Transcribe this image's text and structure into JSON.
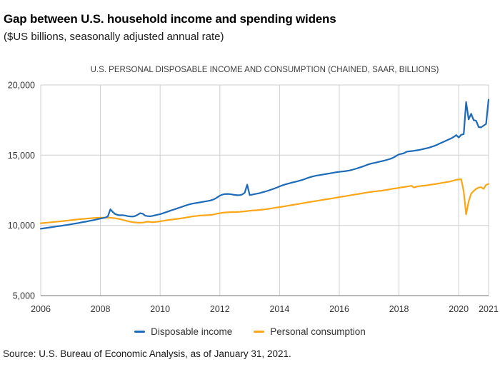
{
  "header": {
    "title": "Gap between U.S. household income and spending widens",
    "subtitle": "($US billions, seasonally adjusted annual rate)"
  },
  "source": {
    "text": "Source: U.S. Bureau of Economic Analysis, as of January 31, 2021."
  },
  "legend": {
    "items": [
      {
        "label": "Disposable income",
        "color": "#1d6bb8"
      },
      {
        "label": "Personal consumption",
        "color": "#fba616"
      }
    ]
  },
  "colors": {
    "grid": "#cfcfcf",
    "axis": "#8f8f8f",
    "tick_text": "#333333",
    "background": "#ffffff"
  },
  "chart_data": {
    "type": "line",
    "title": "U.S. PERSONAL DISPOSABLE INCOME AND CONSUMPTION (CHAINED, SAAR, BILLIONS)",
    "xlabel": "",
    "ylabel": "",
    "xlim": [
      2006,
      2021
    ],
    "ylim": [
      5000,
      20000
    ],
    "grid": true,
    "legend_position": "bottom",
    "x_start_year": 2006,
    "x_step_months": 1,
    "x_ticks": [
      2006,
      2008,
      2010,
      2012,
      2014,
      2016,
      2018,
      2020,
      2021
    ],
    "x_tick_labels": [
      "2006",
      "2008",
      "2010",
      "2012",
      "2014",
      "2016",
      "2018",
      "2020",
      "2021"
    ],
    "y_ticks": [
      5000,
      10000,
      15000,
      20000
    ],
    "y_tick_labels": [
      "5,000",
      "10,000",
      "15,000",
      "20,000"
    ],
    "series": [
      {
        "name": "Disposable income",
        "color": "#1d6bb8",
        "values": [
          9760,
          9785,
          9810,
          9835,
          9860,
          9885,
          9915,
          9940,
          9965,
          9995,
          10020,
          10045,
          10075,
          10105,
          10135,
          10165,
          10200,
          10235,
          10265,
          10300,
          10335,
          10370,
          10405,
          10445,
          10485,
          10520,
          10560,
          10650,
          11150,
          10950,
          10800,
          10740,
          10720,
          10730,
          10700,
          10660,
          10640,
          10630,
          10670,
          10760,
          10870,
          10830,
          10690,
          10660,
          10650,
          10680,
          10720,
          10760,
          10800,
          10860,
          10920,
          10980,
          11040,
          11100,
          11160,
          11220,
          11280,
          11340,
          11400,
          11460,
          11510,
          11550,
          11580,
          11610,
          11640,
          11670,
          11700,
          11730,
          11770,
          11820,
          11890,
          12000,
          12120,
          12190,
          12230,
          12240,
          12230,
          12200,
          12170,
          12150,
          12160,
          12200,
          12320,
          12900,
          12160,
          12190,
          12230,
          12260,
          12300,
          12350,
          12400,
          12450,
          12510,
          12570,
          12630,
          12700,
          12780,
          12840,
          12900,
          12950,
          13000,
          13050,
          13090,
          13130,
          13180,
          13230,
          13290,
          13360,
          13420,
          13470,
          13510,
          13550,
          13580,
          13610,
          13640,
          13670,
          13700,
          13730,
          13760,
          13790,
          13810,
          13830,
          13850,
          13880,
          13910,
          13950,
          14000,
          14050,
          14110,
          14170,
          14230,
          14300,
          14360,
          14410,
          14450,
          14490,
          14530,
          14570,
          14610,
          14660,
          14710,
          14770,
          14850,
          14960,
          15060,
          15100,
          15140,
          15240,
          15270,
          15290,
          15310,
          15340,
          15370,
          15410,
          15450,
          15490,
          15530,
          15590,
          15650,
          15720,
          15800,
          15880,
          15960,
          16040,
          16120,
          16200,
          16300,
          16430,
          16260,
          16450,
          16500,
          18780,
          17550,
          17950,
          17500,
          17450,
          17000,
          16980,
          17100,
          17230,
          18960
        ]
      },
      {
        "name": "Personal consumption",
        "color": "#fba616",
        "values": [
          10150,
          10168,
          10185,
          10203,
          10220,
          10238,
          10255,
          10273,
          10290,
          10310,
          10330,
          10350,
          10370,
          10390,
          10410,
          10430,
          10448,
          10463,
          10478,
          10493,
          10508,
          10520,
          10530,
          10540,
          10548,
          10552,
          10552,
          10548,
          10540,
          10528,
          10508,
          10478,
          10440,
          10395,
          10348,
          10300,
          10262,
          10232,
          10210,
          10196,
          10190,
          10196,
          10232,
          10262,
          10242,
          10232,
          10242,
          10262,
          10290,
          10320,
          10350,
          10378,
          10400,
          10422,
          10445,
          10468,
          10492,
          10518,
          10548,
          10578,
          10608,
          10638,
          10660,
          10680,
          10698,
          10710,
          10720,
          10730,
          10742,
          10762,
          10792,
          10840,
          10868,
          10898,
          10918,
          10930,
          10940,
          10948,
          10950,
          10952,
          10962,
          10980,
          11000,
          11020,
          11040,
          11058,
          11070,
          11082,
          11100,
          11120,
          11140,
          11162,
          11190,
          11218,
          11248,
          11278,
          11300,
          11330,
          11360,
          11390,
          11420,
          11450,
          11480,
          11510,
          11540,
          11570,
          11600,
          11630,
          11660,
          11690,
          11720,
          11750,
          11780,
          11810,
          11838,
          11862,
          11890,
          11920,
          11950,
          11980,
          12010,
          12040,
          12070,
          12100,
          12130,
          12158,
          12188,
          12218,
          12248,
          12278,
          12308,
          12338,
          12368,
          12390,
          12412,
          12432,
          12452,
          12472,
          12500,
          12530,
          12560,
          12590,
          12620,
          12650,
          12678,
          12708,
          12730,
          12760,
          12790,
          12820,
          12700,
          12760,
          12790,
          12812,
          12832,
          12852,
          12872,
          12900,
          12930,
          12960,
          12990,
          13018,
          13048,
          13078,
          13108,
          13148,
          13198,
          13248,
          13268,
          13290,
          12420,
          10780,
          11700,
          12250,
          12450,
          12600,
          12700,
          12720,
          12600,
          12880,
          12950
        ]
      }
    ]
  }
}
